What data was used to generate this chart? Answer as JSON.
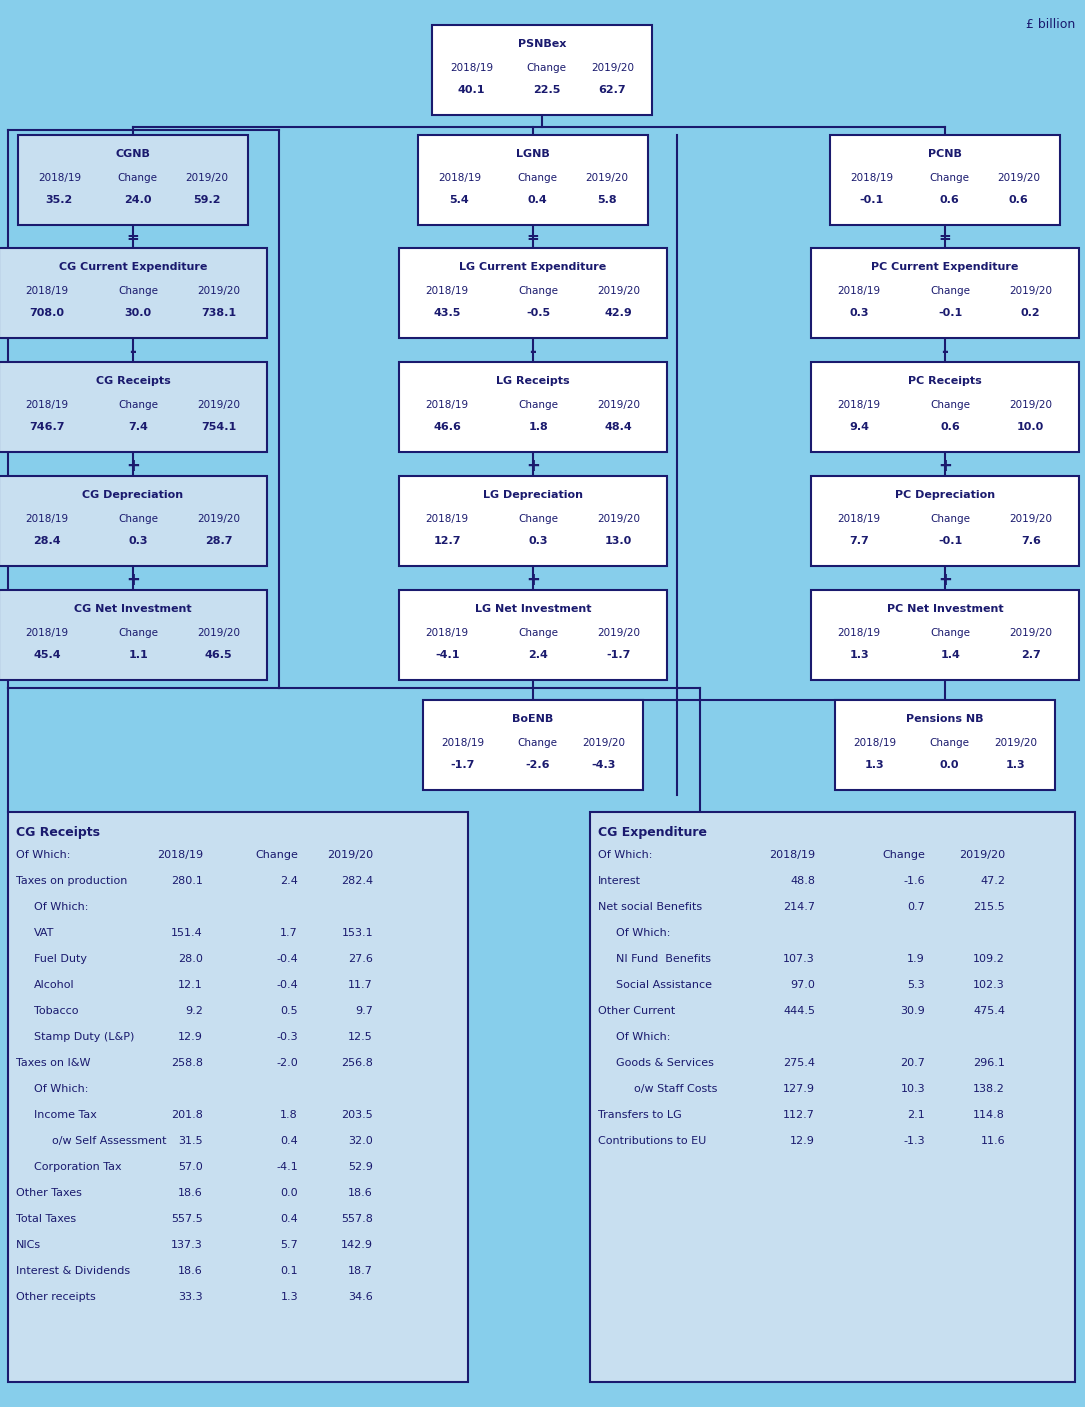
{
  "bg_color": "#87CEEB",
  "box_bg_white": "#FFFFFF",
  "box_bg_light": "#C8DFF0",
  "text_color": "#1a1a6e",
  "border_color": "#1a1a6e",
  "title_note": "£ billion",
  "bottom_left": {
    "title": "CG Receipts",
    "rows": [
      {
        "label": "Of Which:",
        "indent": 0,
        "bold": false,
        "v1": "2018/19",
        "v2": "Change",
        "v3": "2019/20"
      },
      {
        "label": "Taxes on production",
        "indent": 0,
        "bold": false,
        "v1": "280.1",
        "v2": "2.4",
        "v3": "282.4"
      },
      {
        "label": "Of Which:",
        "indent": 1,
        "bold": false,
        "v1": "",
        "v2": "",
        "v3": ""
      },
      {
        "label": "VAT",
        "indent": 1,
        "bold": false,
        "v1": "151.4",
        "v2": "1.7",
        "v3": "153.1"
      },
      {
        "label": "Fuel Duty",
        "indent": 1,
        "bold": false,
        "v1": "28.0",
        "v2": "-0.4",
        "v3": "27.6"
      },
      {
        "label": "Alcohol",
        "indent": 1,
        "bold": false,
        "v1": "12.1",
        "v2": "-0.4",
        "v3": "11.7"
      },
      {
        "label": "Tobacco",
        "indent": 1,
        "bold": false,
        "v1": "9.2",
        "v2": "0.5",
        "v3": "9.7"
      },
      {
        "label": "Stamp Duty (L&P)",
        "indent": 1,
        "bold": false,
        "v1": "12.9",
        "v2": "-0.3",
        "v3": "12.5"
      },
      {
        "label": "Taxes on I&W",
        "indent": 0,
        "bold": false,
        "v1": "258.8",
        "v2": "-2.0",
        "v3": "256.8"
      },
      {
        "label": "Of Which:",
        "indent": 1,
        "bold": false,
        "v1": "",
        "v2": "",
        "v3": ""
      },
      {
        "label": "Income Tax",
        "indent": 1,
        "bold": false,
        "v1": "201.8",
        "v2": "1.8",
        "v3": "203.5"
      },
      {
        "label": "o/w Self Assessment",
        "indent": 2,
        "bold": false,
        "v1": "31.5",
        "v2": "0.4",
        "v3": "32.0"
      },
      {
        "label": "Corporation Tax",
        "indent": 1,
        "bold": false,
        "v1": "57.0",
        "v2": "-4.1",
        "v3": "52.9"
      },
      {
        "label": "Other Taxes",
        "indent": 0,
        "bold": false,
        "v1": "18.6",
        "v2": "0.0",
        "v3": "18.6"
      },
      {
        "label": "Total Taxes",
        "indent": 0,
        "bold": false,
        "v1": "557.5",
        "v2": "0.4",
        "v3": "557.8"
      },
      {
        "label": "NICs",
        "indent": 0,
        "bold": false,
        "v1": "137.3",
        "v2": "5.7",
        "v3": "142.9"
      },
      {
        "label": "Interest & Dividends",
        "indent": 0,
        "bold": false,
        "v1": "18.6",
        "v2": "0.1",
        "v3": "18.7"
      },
      {
        "label": "Other receipts",
        "indent": 0,
        "bold": false,
        "v1": "33.3",
        "v2": "1.3",
        "v3": "34.6"
      }
    ]
  },
  "bottom_right": {
    "title": "CG Expenditure",
    "rows": [
      {
        "label": "Of Which:",
        "indent": 0,
        "bold": false,
        "v1": "2018/19",
        "v2": "Change",
        "v3": "2019/20"
      },
      {
        "label": "Interest",
        "indent": 0,
        "bold": false,
        "v1": "48.8",
        "v2": "-1.6",
        "v3": "47.2"
      },
      {
        "label": "Net social Benefits",
        "indent": 0,
        "bold": false,
        "v1": "214.7",
        "v2": "0.7",
        "v3": "215.5"
      },
      {
        "label": "Of Which:",
        "indent": 1,
        "bold": false,
        "v1": "",
        "v2": "",
        "v3": ""
      },
      {
        "label": "NI Fund  Benefits",
        "indent": 1,
        "bold": false,
        "v1": "107.3",
        "v2": "1.9",
        "v3": "109.2"
      },
      {
        "label": "Social Assistance",
        "indent": 1,
        "bold": false,
        "v1": "97.0",
        "v2": "5.3",
        "v3": "102.3"
      },
      {
        "label": "Other Current",
        "indent": 0,
        "bold": false,
        "v1": "444.5",
        "v2": "30.9",
        "v3": "475.4"
      },
      {
        "label": "Of Which:",
        "indent": 1,
        "bold": false,
        "v1": "",
        "v2": "",
        "v3": ""
      },
      {
        "label": "Goods & Services",
        "indent": 1,
        "bold": false,
        "v1": "275.4",
        "v2": "20.7",
        "v3": "296.1"
      },
      {
        "label": "o/w Staff Costs",
        "indent": 2,
        "bold": false,
        "v1": "127.9",
        "v2": "10.3",
        "v3": "138.2"
      },
      {
        "label": "Transfers to LG",
        "indent": 0,
        "bold": false,
        "v1": "112.7",
        "v2": "2.1",
        "v3": "114.8"
      },
      {
        "label": "Contributions to EU",
        "indent": 0,
        "bold": false,
        "v1": "12.9",
        "v2": "-1.3",
        "v3": "11.6"
      }
    ]
  }
}
